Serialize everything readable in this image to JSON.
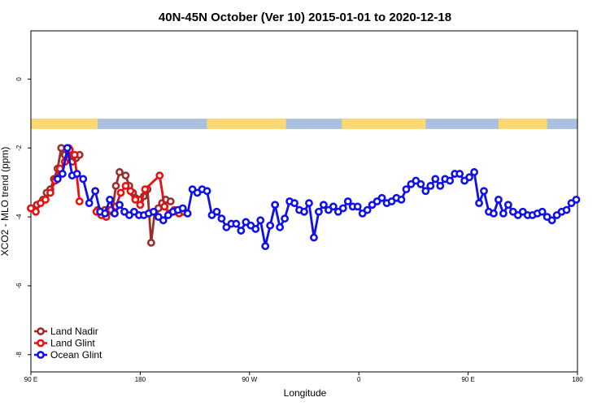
{
  "chart_data": {
    "type": "line",
    "title": "40N-45N October (Ver 10)   2015-01-01 to 2020-12-18",
    "xlabel": "Longitude",
    "ylabel": "XCO2 - MLO trend (ppm)",
    "xlim": [
      90,
      540
    ],
    "ylim": [
      -8.5,
      1.4
    ],
    "x_ticks": [
      {
        "value": 90,
        "label": "90 E"
      },
      {
        "value": 180,
        "label": "180"
      },
      {
        "value": 270,
        "label": "90 W"
      },
      {
        "value": 360,
        "label": "0"
      },
      {
        "value": 450,
        "label": "90 E"
      },
      {
        "value": 540,
        "label": "180"
      }
    ],
    "y_ticks": [
      {
        "value": 0,
        "label": "0"
      },
      {
        "value": -2,
        "label": "-2"
      },
      {
        "value": -4,
        "label": "-4"
      },
      {
        "value": -6,
        "label": "-6"
      },
      {
        "value": -8,
        "label": "-8"
      }
    ],
    "legend_position": "bottom-left",
    "land_ocean_strip": {
      "y_range": [
        -1.45,
        -1.15
      ],
      "ocean_color": "#a9c0de",
      "land_color": "#fcd873",
      "land_segments": [
        [
          90,
          145
        ],
        [
          235,
          300
        ],
        [
          346,
          415
        ],
        [
          475,
          515
        ]
      ]
    },
    "series": [
      {
        "name": "Land Nadir",
        "color": "#9b2d2d",
        "x": [
          90,
          95,
          100,
          103,
          106,
          109,
          112,
          115,
          118,
          121,
          124,
          127,
          130,
          145,
          148,
          151,
          154,
          157,
          160,
          163,
          168,
          171,
          174,
          176,
          178,
          180,
          183,
          186,
          189,
          192,
          195,
          198,
          201,
          205
        ],
        "y": [
          -3.75,
          -3.65,
          -3.5,
          -3.3,
          -3.2,
          -2.9,
          -2.6,
          -2.0,
          -2.2,
          -2.0,
          -2.4,
          -2.3,
          -2.2,
          -3.8,
          -3.85,
          -3.8,
          -3.8,
          -3.85,
          -3.1,
          -2.7,
          -2.8,
          -3.1,
          -3.3,
          -3.45,
          -3.5,
          -3.5,
          -3.4,
          -3.2,
          -4.75,
          -3.85,
          -3.75,
          -3.6,
          -3.5,
          -3.55
        ],
        "offset_x": [
          0,
          0,
          0,
          0,
          0,
          0,
          0,
          0,
          0,
          0,
          0,
          0,
          0,
          0,
          0,
          0,
          0,
          0,
          0,
          0,
          0,
          0,
          0,
          0,
          0,
          0,
          0,
          0,
          0,
          0,
          0,
          0,
          0,
          0
        ]
      },
      {
        "name": "Land Glint",
        "color": "#e81010",
        "x": [
          90,
          94,
          98,
          102,
          106,
          110,
          114,
          118,
          122,
          126,
          130,
          144,
          148,
          152,
          156,
          160,
          164,
          168,
          172,
          176,
          180,
          184,
          196,
          200,
          204,
          208,
          212,
          216
        ],
        "y": [
          -3.75,
          -3.85,
          -3.6,
          -3.5,
          -3.3,
          -2.95,
          -2.6,
          -2.4,
          -2.05,
          -2.2,
          -3.55,
          -3.85,
          -3.95,
          -4.0,
          -3.8,
          -3.7,
          -3.3,
          -3.1,
          -3.25,
          -3.5,
          -3.65,
          -3.2,
          -2.8,
          -3.7,
          -3.9,
          -3.8,
          -3.9,
          -3.85
        ],
        "offset_x": [
          0,
          0,
          0,
          0,
          0,
          0,
          0,
          0,
          0,
          0,
          0,
          0,
          0,
          0,
          0,
          0,
          0,
          0,
          0,
          0,
          0,
          0,
          0,
          0,
          0,
          0,
          0,
          0
        ]
      },
      {
        "name": "Ocean Glint",
        "color": "#1010e8",
        "x": [
          112,
          116,
          120,
          124,
          128,
          133,
          138,
          143,
          147,
          151,
          155,
          159,
          163,
          167,
          171,
          175,
          179,
          183,
          187,
          191,
          195,
          199,
          203,
          207,
          211,
          215,
          219,
          223,
          227,
          231,
          235,
          239,
          243,
          247,
          251,
          255,
          259,
          263,
          267,
          271,
          275,
          279,
          283,
          287,
          291,
          295,
          299,
          303,
          307,
          311,
          315,
          319,
          323,
          327,
          331,
          335,
          339,
          343,
          347,
          351,
          355,
          359,
          363,
          367,
          371,
          375,
          379,
          383,
          387,
          391,
          395,
          399,
          403,
          407,
          411,
          415,
          419,
          423,
          427,
          431,
          435,
          439,
          443,
          447,
          451,
          455,
          459,
          463,
          467,
          471,
          475,
          479,
          483,
          487,
          491,
          495,
          499,
          503,
          507,
          511,
          515,
          519,
          523,
          527,
          531,
          535,
          539
        ],
        "y": [
          -2.9,
          -2.75,
          -2.0,
          -2.8,
          -2.75,
          -2.9,
          -3.6,
          -3.25,
          -3.85,
          -3.9,
          -3.5,
          -3.9,
          -3.65,
          -3.85,
          -3.95,
          -3.85,
          -3.95,
          -3.95,
          -3.9,
          -3.85,
          -4.0,
          -4.1,
          -3.95,
          -3.85,
          -3.8,
          -3.75,
          -3.9,
          -3.2,
          -3.3,
          -3.2,
          -3.25,
          -3.95,
          -3.85,
          -4.05,
          -4.3,
          -4.2,
          -4.2,
          -4.4,
          -4.15,
          -4.25,
          -4.35,
          -4.1,
          -4.85,
          -4.25,
          -3.65,
          -4.3,
          -4.05,
          -3.55,
          -3.6,
          -3.8,
          -3.85,
          -3.6,
          -4.6,
          -3.85,
          -3.65,
          -3.8,
          -3.7,
          -3.85,
          -3.75,
          -3.55,
          -3.7,
          -3.7,
          -3.9,
          -3.8,
          -3.65,
          -3.55,
          -3.45,
          -3.6,
          -3.55,
          -3.45,
          -3.5,
          -3.2,
          -3.05,
          -2.95,
          -3.05,
          -3.25,
          -3.1,
          -2.9,
          -3.1,
          -2.9,
          -2.95,
          -2.75,
          -2.75,
          -2.95,
          -2.85,
          -2.7,
          -3.6,
          -3.25,
          -3.85,
          -3.9,
          -3.5,
          -3.9,
          -3.65,
          -3.85,
          -3.95,
          -3.85,
          -3.95,
          -3.95,
          -3.9,
          -3.85,
          -4.0,
          -4.1,
          -3.95,
          -3.85,
          -3.8,
          -3.6,
          -3.5
        ],
        "offset_x": []
      }
    ]
  }
}
